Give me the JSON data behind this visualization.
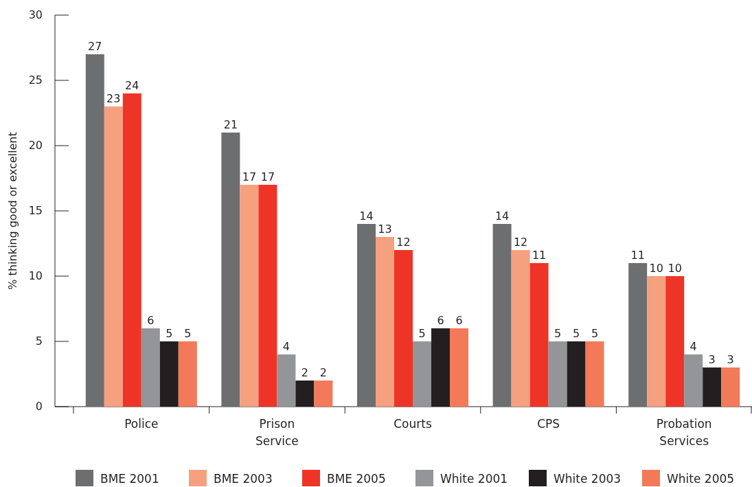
{
  "chart_data": {
    "type": "bar",
    "ylabel": "% thinking good or excellent",
    "categories": [
      "Police",
      "Prison Service",
      "Courts",
      "CPS",
      "Probation Services"
    ],
    "series": [
      {
        "name": "BME 2001",
        "color": "#6d6e70",
        "values": [
          27,
          21,
          14,
          14,
          11
        ]
      },
      {
        "name": "BME 2003",
        "color": "#f5a07e",
        "values": [
          23,
          17,
          13,
          12,
          10
        ]
      },
      {
        "name": "BME 2005",
        "color": "#ee3427",
        "values": [
          24,
          17,
          12,
          11,
          10
        ]
      },
      {
        "name": "White 2001",
        "color": "#939598",
        "values": [
          6,
          4,
          5,
          5,
          4
        ]
      },
      {
        "name": "White 2003",
        "color": "#231f20",
        "values": [
          5,
          2,
          6,
          5,
          3
        ]
      },
      {
        "name": "White 2005",
        "color": "#f37a59",
        "values": [
          5,
          2,
          6,
          5,
          3
        ]
      }
    ],
    "ylim": [
      0,
      30
    ],
    "yticks": [
      0,
      5,
      10,
      15,
      20,
      25,
      30
    ],
    "data_labels": true,
    "legend": "bottom",
    "grid": false
  }
}
